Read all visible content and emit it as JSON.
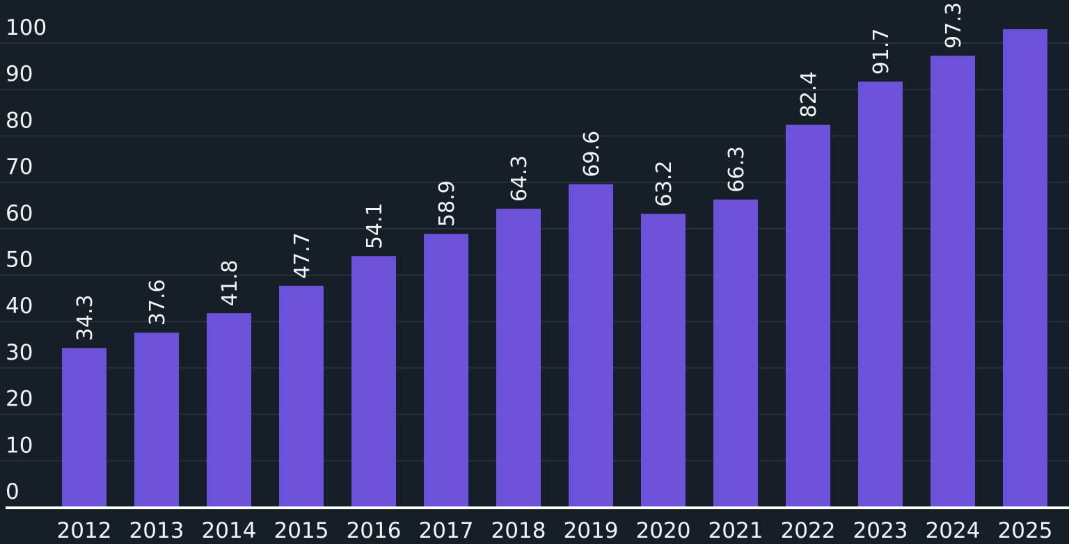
{
  "colors": {
    "background": "#161e27",
    "bar": "#6c52d8",
    "grid": "#263039",
    "text": "#f2f3f5",
    "axis": "#ffffff"
  },
  "chart_data": {
    "type": "bar",
    "title": "",
    "xlabel": "",
    "ylabel": "",
    "categories": [
      "2012",
      "2013",
      "2014",
      "2015",
      "2016",
      "2017",
      "2018",
      "2019",
      "2020",
      "2021",
      "2022",
      "2023",
      "2024",
      "2025"
    ],
    "values": [
      34.3,
      37.6,
      41.8,
      47.7,
      54.1,
      58.9,
      64.3,
      69.6,
      63.2,
      66.3,
      82.4,
      91.7,
      97.3,
      103.0
    ],
    "data_labels": [
      "34.3",
      "37.6",
      "41.8",
      "47.7",
      "54.1",
      "58.9",
      "64.3",
      "69.6",
      "63.2",
      "66.3",
      "82.4",
      "91.7",
      "97.3",
      ""
    ],
    "yticks": [
      0,
      10,
      20,
      30,
      40,
      50,
      60,
      70,
      80,
      90,
      100
    ],
    "ylim": [
      0,
      103.8
    ],
    "grid": true,
    "legend": "none"
  }
}
